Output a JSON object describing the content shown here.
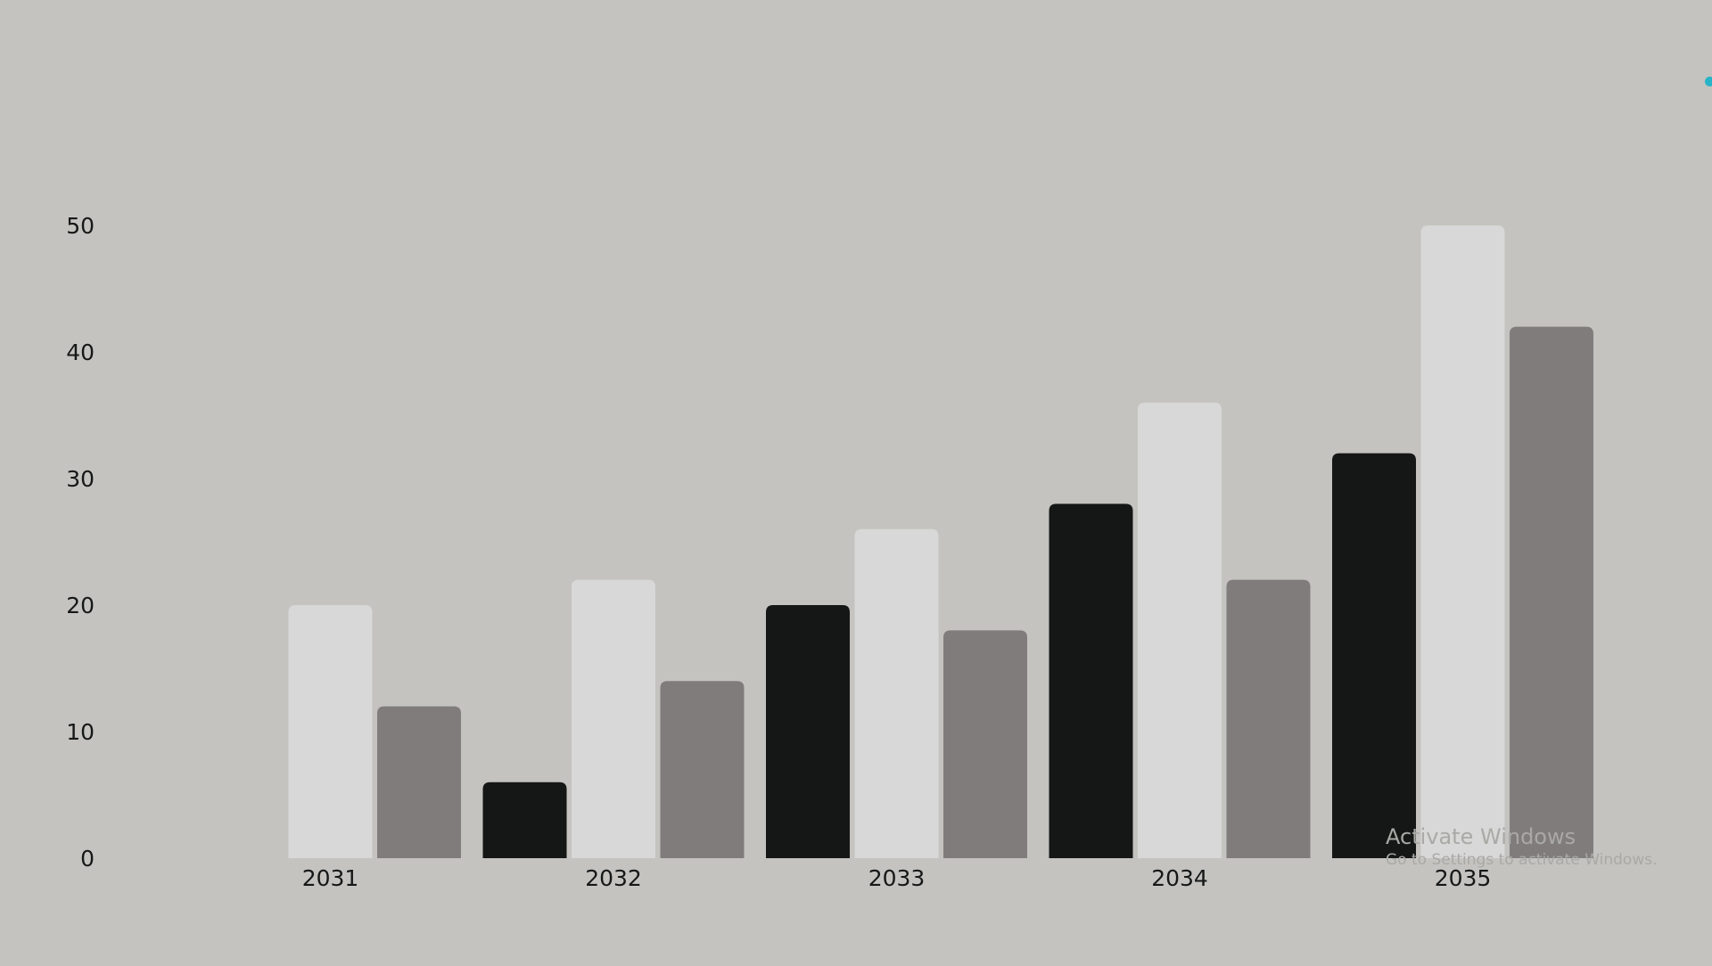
{
  "chart_data": {
    "type": "bar",
    "categories": [
      "2031",
      "2032",
      "2033",
      "2034",
      "2035"
    ],
    "series": [
      {
        "values": [
          0,
          6,
          20,
          28,
          32
        ],
        "color": "#151717"
      },
      {
        "values": [
          20,
          22,
          26,
          36,
          50
        ],
        "color": "#d8d8d8"
      },
      {
        "values": [
          12,
          14,
          18,
          22,
          42
        ],
        "color": "#807c7c"
      }
    ],
    "yticks": [
      "0",
      "10",
      "20",
      "30",
      "40",
      "50"
    ],
    "ylim": [
      0,
      50
    ],
    "title": "",
    "xlabel": "",
    "ylabel": "",
    "grid": false,
    "legend": "none"
  },
  "colors": {
    "background": "#c4c3bf",
    "text": "#161818",
    "accent_dot": "#29b3c9"
  },
  "watermark": {
    "title": "Activate Windows",
    "subtitle": "Go to Settings to activate Windows."
  }
}
